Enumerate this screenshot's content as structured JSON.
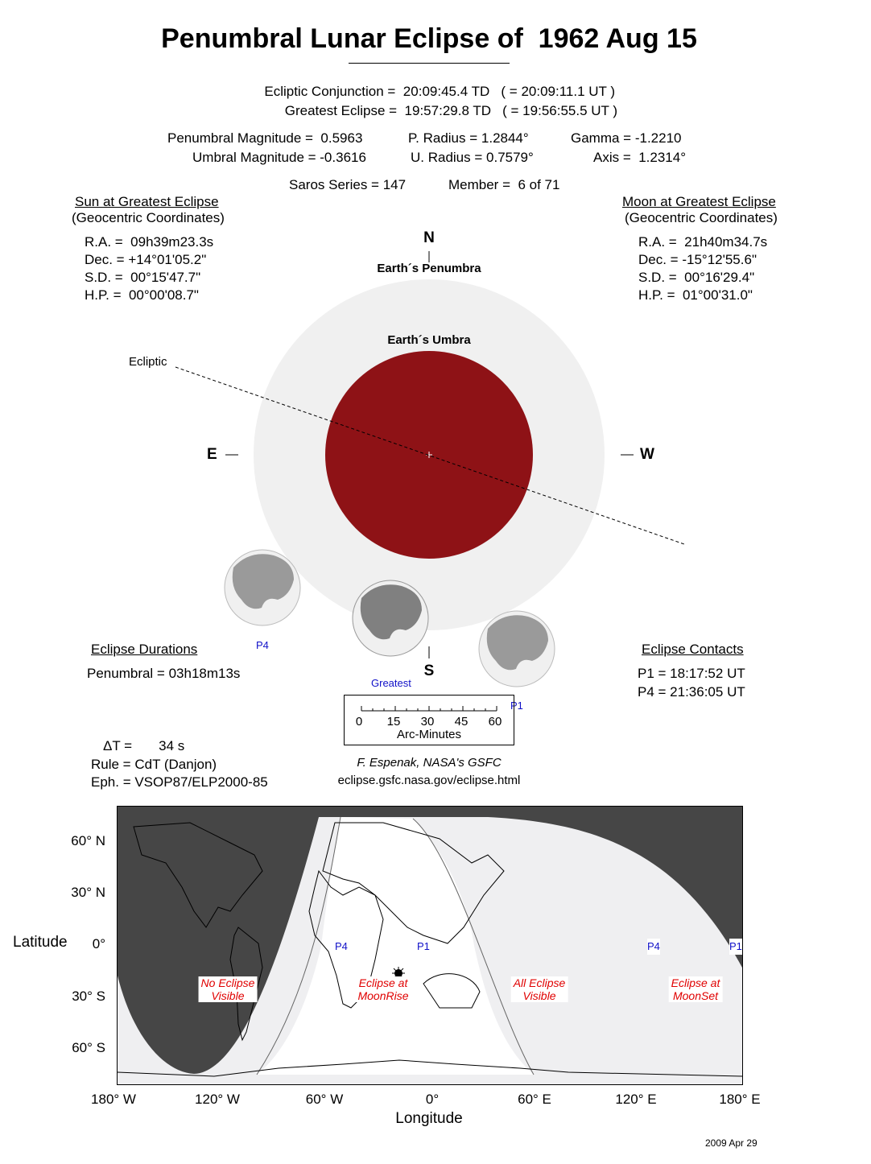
{
  "title": "Penumbral Lunar Eclipse of  1962 Aug 15",
  "header": {
    "conjunction": "Ecliptic Conjunction =  20:09:45.4 TD   ( = 20:09:11.1 UT )",
    "greatest": "Greatest Eclipse =  19:57:29.8 TD   ( = 19:56:55.5 UT )",
    "pen_mag": "Penumbral Magnitude =  0.5963",
    "umb_mag": "Umbral Magnitude = -0.3616",
    "p_radius": "P. Radius = 1.2844°",
    "u_radius": "U. Radius = 0.7579°",
    "gamma": "Gamma = -1.2210",
    "axis": "Axis =  1.2314°",
    "saros": "Saros Series = 147",
    "member": "Member =  6 of 71"
  },
  "sun": {
    "heading": "Sun at Greatest Eclipse",
    "sub": "(Geocentric Coordinates)",
    "ra": "R.A. =  09h39m23.3s",
    "dec": "Dec. = +14°01'05.2\"",
    "sd": "S.D. =  00°15'47.7\"",
    "hp": "H.P. =  00°00'08.7\""
  },
  "moon": {
    "heading": "Moon at Greatest Eclipse",
    "sub": "(Geocentric Coordinates)",
    "ra": "R.A. =  21h40m34.7s",
    "dec": "Dec. = -15°12'55.6\"",
    "sd": "S.D. =  00°16'29.4\"",
    "hp": "H.P. =  01°00'31.0\""
  },
  "diagram": {
    "north": "N",
    "south": "S",
    "east": "E",
    "west": "W",
    "penumbra_label": "Earth´s Penumbra",
    "umbra_label": "Earth´s Umbra",
    "ecliptic_label": "Ecliptic",
    "p4": "P4",
    "greatest": "Greatest",
    "p1": "P1",
    "umbra_color": "#8e1216",
    "penumbra_color": "#f0f0f0"
  },
  "durations": {
    "heading": "Eclipse Durations",
    "penumbral": "Penumbral = 03h18m13s"
  },
  "contacts": {
    "heading": "Eclipse Contacts",
    "p1": "P1 = 18:17:52 UT",
    "p4": "P4 = 21:36:05 UT"
  },
  "scale": {
    "ticks": [
      "0",
      "15",
      "30",
      "45",
      "60"
    ],
    "label": "Arc-Minutes"
  },
  "misc": {
    "delta_t": "ΔT =       34 s",
    "rule": "Rule = CdT (Danjon)",
    "eph": "Eph. = VSOP87/ELP2000-85"
  },
  "credit": {
    "author": "F. Espenak, NASA's GSFC",
    "url": "eclipse.gsfc.nasa.gov/eclipse.html"
  },
  "map": {
    "ylabel": "Latitude",
    "xlabel": "Longitude",
    "lat_ticks": [
      "60° N",
      "30° N",
      "0°",
      "30° S",
      "60° S"
    ],
    "lon_ticks": [
      "180° W",
      "120° W",
      "60° W",
      "0°",
      "60° E",
      "120° E",
      "180° E"
    ],
    "regions": {
      "no_eclipse": [
        "No Eclipse",
        "Visible"
      ],
      "moonrise": [
        "Eclipse at",
        "MoonRise"
      ],
      "all": [
        "All Eclipse",
        "Visible"
      ],
      "moonset": [
        "Eclipse at",
        "MoonSet"
      ]
    },
    "contact_labels": [
      "P4",
      "P1",
      "P4",
      "P1"
    ],
    "no_eclipse_color": "#464646",
    "partial_color": "#efeff1"
  },
  "date_stamp": "2009 Apr 29"
}
